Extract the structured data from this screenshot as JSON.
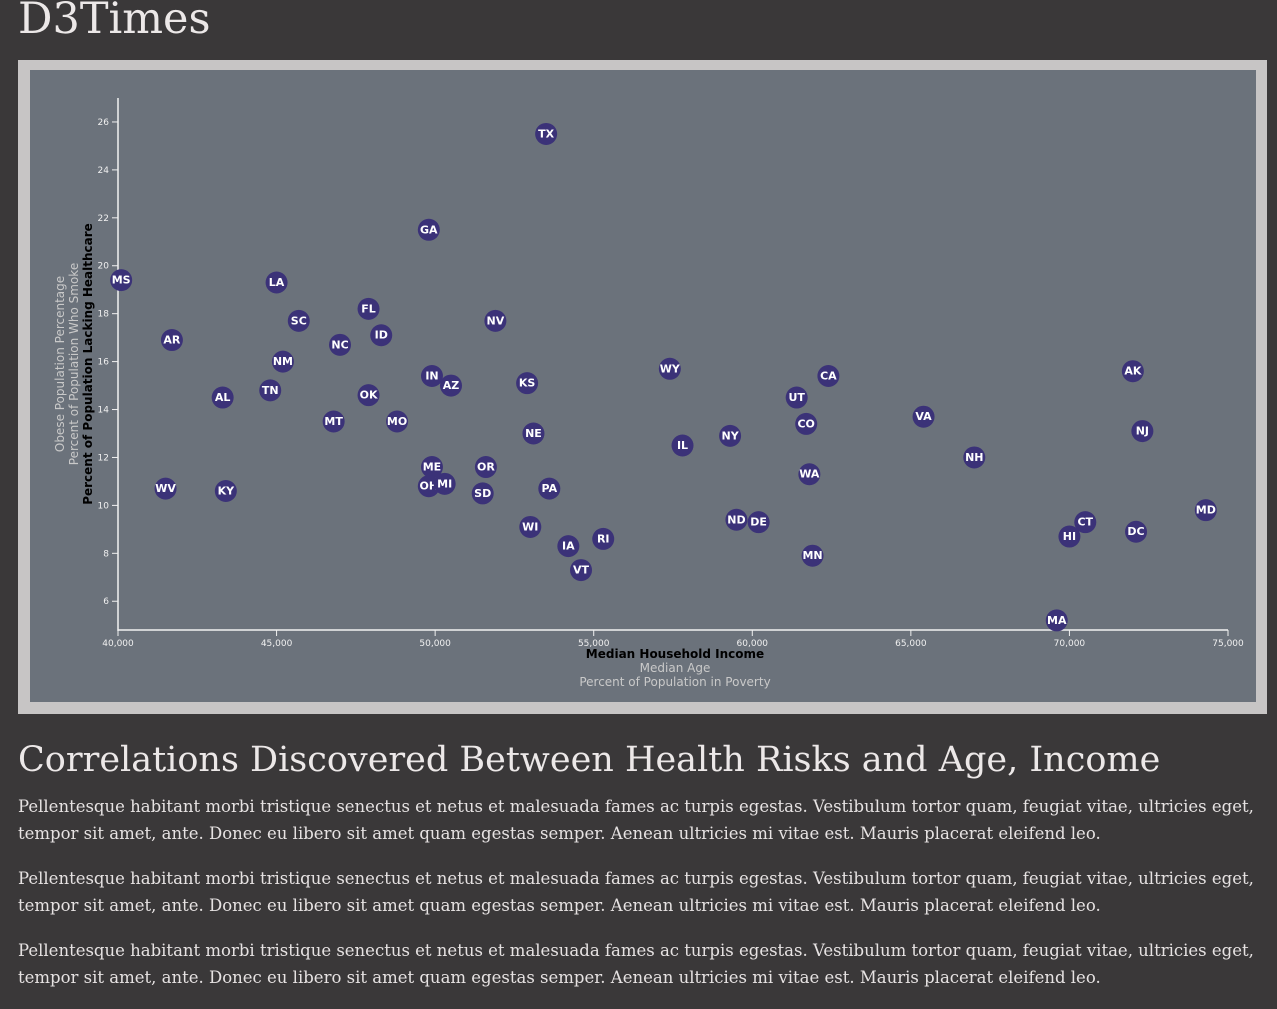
{
  "site": {
    "title": "D3Times"
  },
  "section": {
    "heading": "Correlations Discovered Between Health Risks and Age, Income"
  },
  "paragraphs": [
    "Pellentesque habitant morbi tristique senectus et netus et malesuada fames ac turpis egestas. Vestibulum tortor quam, feugiat vitae, ultricies eget, tempor sit amet, ante. Donec eu libero sit amet quam egestas semper. Aenean ultricies mi vitae est. Mauris placerat eleifend leo.",
    "Pellentesque habitant morbi tristique senectus et netus et malesuada fames ac turpis egestas. Vestibulum tortor quam, feugiat vitae, ultricies eget, tempor sit amet, ante. Donec eu libero sit amet quam egestas semper. Aenean ultricies mi vitae est. Mauris placerat eleifend leo.",
    "Pellentesque habitant morbi tristique senectus et netus et malesuada fames ac turpis egestas. Vestibulum tortor quam, feugiat vitae, ultricies eget, tempor sit amet, ante. Donec eu libero sit amet quam egestas semper. Aenean ultricies mi vitae est. Mauris placerat eleifend leo."
  ],
  "colors": {
    "background": "#3a3839",
    "panel": "#6b727b",
    "frame": "#c7c5c5",
    "marker": "#3b3278"
  },
  "chart_data": {
    "type": "scatter",
    "x_axis_labels": [
      {
        "text": "Median Household Income",
        "active": true
      },
      {
        "text": "Median Age",
        "active": false
      },
      {
        "text": "Percent of Population in Poverty",
        "active": false
      }
    ],
    "y_axis_labels": [
      {
        "text": "Percent of Population Lacking Healthcare",
        "active": true
      },
      {
        "text": "Percent of Population Who Smoke",
        "active": false
      },
      {
        "text": "Obese Population Percentage",
        "active": false
      }
    ],
    "xlim": [
      40000,
      75000
    ],
    "ylim": [
      4.8,
      27
    ],
    "x_ticks": [
      40000,
      45000,
      50000,
      55000,
      60000,
      65000,
      70000,
      75000
    ],
    "x_tick_labels": [
      "40,000",
      "45,000",
      "50,000",
      "55,000",
      "60,000",
      "65,000",
      "70,000",
      "75,000"
    ],
    "y_ticks": [
      6,
      8,
      10,
      12,
      14,
      16,
      18,
      20,
      22,
      24,
      26
    ],
    "y_tick_labels": [
      "6",
      "8",
      "10",
      "12",
      "14",
      "16",
      "18",
      "20",
      "22",
      "24",
      "26"
    ],
    "points": [
      {
        "label": "MS",
        "x": 40100,
        "y": 19.4
      },
      {
        "label": "AR",
        "x": 41700,
        "y": 16.9
      },
      {
        "label": "WV",
        "x": 41500,
        "y": 10.7
      },
      {
        "label": "AL",
        "x": 43300,
        "y": 14.5
      },
      {
        "label": "KY",
        "x": 43400,
        "y": 10.6
      },
      {
        "label": "LA",
        "x": 45000,
        "y": 19.3
      },
      {
        "label": "TN",
        "x": 44800,
        "y": 14.8
      },
      {
        "label": "NM",
        "x": 45200,
        "y": 16.0
      },
      {
        "label": "SC",
        "x": 45700,
        "y": 17.7
      },
      {
        "label": "MT",
        "x": 46800,
        "y": 13.5
      },
      {
        "label": "NC",
        "x": 47000,
        "y": 16.7
      },
      {
        "label": "FL",
        "x": 47900,
        "y": 18.2
      },
      {
        "label": "OK",
        "x": 47900,
        "y": 14.6
      },
      {
        "label": "ID",
        "x": 48300,
        "y": 17.1
      },
      {
        "label": "MO",
        "x": 48800,
        "y": 13.5
      },
      {
        "label": "GA",
        "x": 49800,
        "y": 21.5
      },
      {
        "label": "IN",
        "x": 49900,
        "y": 15.4
      },
      {
        "label": "ME",
        "x": 49900,
        "y": 11.6
      },
      {
        "label": "OH",
        "x": 49800,
        "y": 10.8
      },
      {
        "label": "MI",
        "x": 50300,
        "y": 10.9
      },
      {
        "label": "AZ",
        "x": 50500,
        "y": 15.0
      },
      {
        "label": "SD",
        "x": 51500,
        "y": 10.5
      },
      {
        "label": "OR",
        "x": 51600,
        "y": 11.6
      },
      {
        "label": "NV",
        "x": 51900,
        "y": 17.7
      },
      {
        "label": "KS",
        "x": 52900,
        "y": 15.1
      },
      {
        "label": "WI",
        "x": 53000,
        "y": 9.1
      },
      {
        "label": "NE",
        "x": 53100,
        "y": 13.0
      },
      {
        "label": "TX",
        "x": 53500,
        "y": 25.5
      },
      {
        "label": "PA",
        "x": 53600,
        "y": 10.7
      },
      {
        "label": "IA",
        "x": 54200,
        "y": 8.3
      },
      {
        "label": "VT",
        "x": 54600,
        "y": 7.3
      },
      {
        "label": "RI",
        "x": 55300,
        "y": 8.6
      },
      {
        "label": "WY",
        "x": 57400,
        "y": 15.7
      },
      {
        "label": "IL",
        "x": 57800,
        "y": 12.5
      },
      {
        "label": "NY",
        "x": 59300,
        "y": 12.9
      },
      {
        "label": "ND",
        "x": 59500,
        "y": 9.4
      },
      {
        "label": "DE",
        "x": 60200,
        "y": 9.3
      },
      {
        "label": "UT",
        "x": 61400,
        "y": 14.5
      },
      {
        "label": "CO",
        "x": 61700,
        "y": 13.4
      },
      {
        "label": "WA",
        "x": 61800,
        "y": 11.3
      },
      {
        "label": "MN",
        "x": 61900,
        "y": 7.9
      },
      {
        "label": "CA",
        "x": 62400,
        "y": 15.4
      },
      {
        "label": "VA",
        "x": 65400,
        "y": 13.7
      },
      {
        "label": "NH",
        "x": 67000,
        "y": 12.0
      },
      {
        "label": "MA",
        "x": 69600,
        "y": 5.2
      },
      {
        "label": "HI",
        "x": 70000,
        "y": 8.7
      },
      {
        "label": "CT",
        "x": 70500,
        "y": 9.3
      },
      {
        "label": "AK",
        "x": 72000,
        "y": 15.6
      },
      {
        "label": "DC",
        "x": 72100,
        "y": 8.9
      },
      {
        "label": "NJ",
        "x": 72300,
        "y": 13.1
      },
      {
        "label": "MD",
        "x": 74300,
        "y": 9.8
      }
    ]
  }
}
